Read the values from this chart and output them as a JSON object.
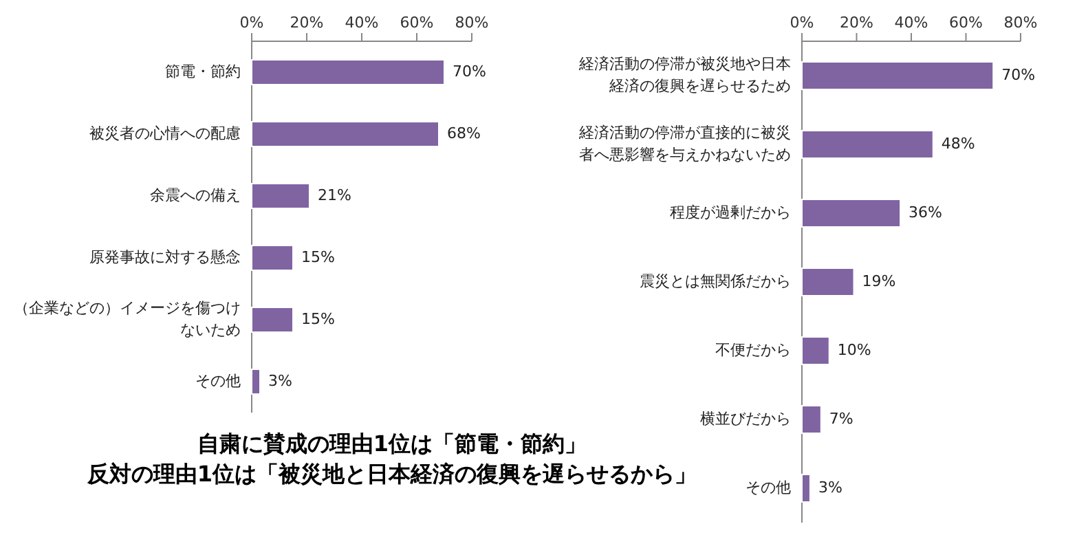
{
  "chart_data": [
    {
      "type": "bar",
      "orientation": "horizontal",
      "categories": [
        "節電・節約",
        "被災者の心情への配慮",
        "余震への備え",
        "原発事故に対する懸念",
        "（企業などの）イメージを傷つけないため",
        "その他"
      ],
      "values": [
        70,
        68,
        21,
        15,
        15,
        3
      ],
      "color": "#8064a2",
      "value_labels": [
        "70%",
        "68%",
        "21%",
        "15%",
        "15%",
        "3%"
      ],
      "xlim": [
        0,
        80
      ],
      "xticks": [
        {
          "value": 0,
          "label": "0%"
        },
        {
          "value": 20,
          "label": "20%"
        },
        {
          "value": 40,
          "label": "40%"
        },
        {
          "value": 60,
          "label": "60%"
        },
        {
          "value": 80,
          "label": "80%"
        }
      ],
      "annotations": [
        "自粛に賛成の理由1位は「節電・節約」",
        "反対の理由1位は「被災地と日本経済の復興を遅らせるから」"
      ]
    },
    {
      "type": "bar",
      "orientation": "horizontal",
      "categories": [
        "経済活動の停滞が被災地や日本経済の復興を遅らせるため",
        "経済活動の停滞が直接的に被災者へ悪影響を与えかねないため",
        "程度が過剰だから",
        "震災とは無関係だから",
        "不便だから",
        "横並びだから",
        "その他"
      ],
      "values": [
        70,
        48,
        36,
        19,
        10,
        7,
        3
      ],
      "color": "#8064a2",
      "value_labels": [
        "70%",
        "48%",
        "36%",
        "19%",
        "10%",
        "7%",
        "3%"
      ],
      "xlim": [
        0,
        80
      ],
      "xticks": [
        {
          "value": 0,
          "label": "0%"
        },
        {
          "value": 20,
          "label": "20%"
        },
        {
          "value": 40,
          "label": "40%"
        },
        {
          "value": 60,
          "label": "60%"
        },
        {
          "value": 80,
          "label": "80%"
        }
      ]
    }
  ]
}
